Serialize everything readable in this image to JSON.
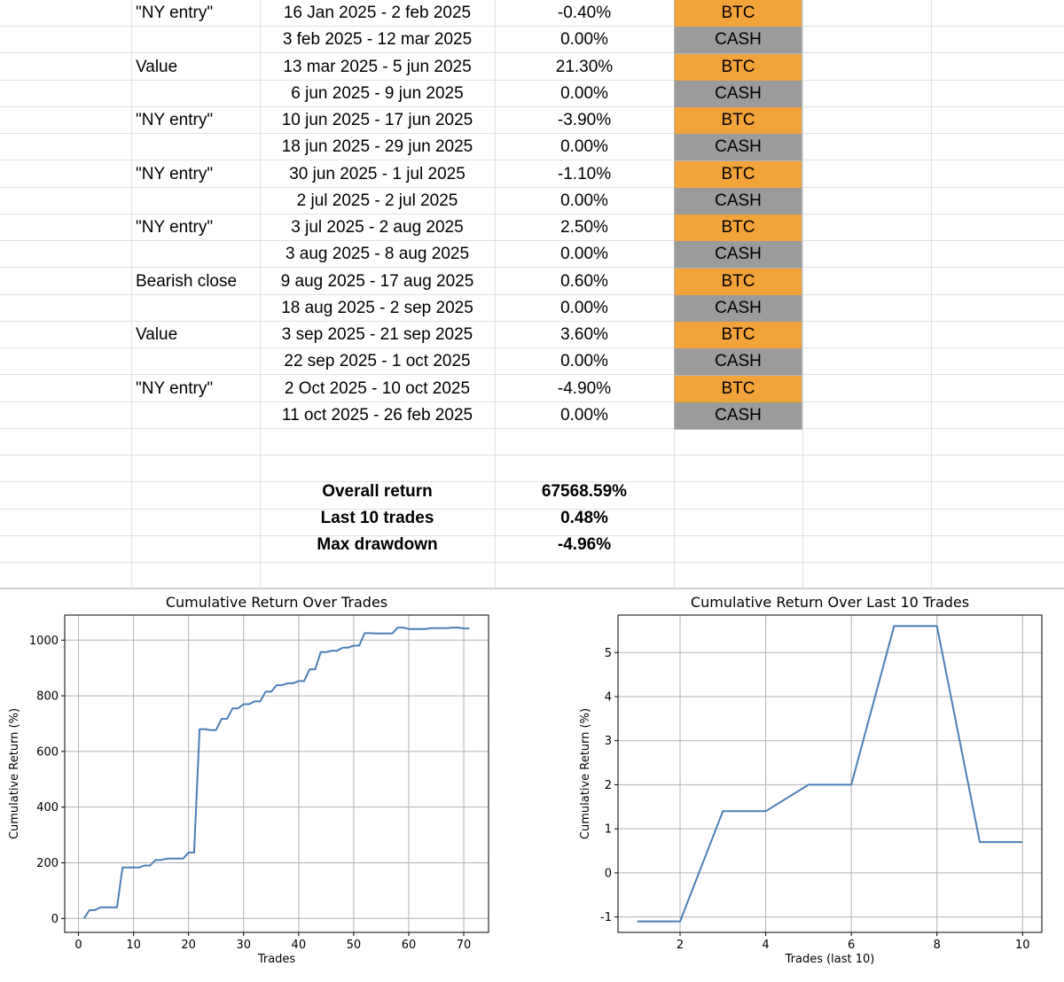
{
  "table": {
    "rows": [
      {
        "strategy": "\"NY entry\"",
        "period": "16 Jan 2025 - 2 feb 2025",
        "ret": "-0.40%",
        "asset": "BTC"
      },
      {
        "strategy": "",
        "period": "3 feb 2025 - 12 mar 2025",
        "ret": "0.00%",
        "asset": "CASH"
      },
      {
        "strategy": "Value",
        "period": "13 mar 2025 - 5 jun 2025",
        "ret": "21.30%",
        "asset": "BTC"
      },
      {
        "strategy": "",
        "period": "6 jun 2025 - 9 jun 2025",
        "ret": "0.00%",
        "asset": "CASH"
      },
      {
        "strategy": "\"NY entry\"",
        "period": "10 jun 2025 - 17 jun 2025",
        "ret": "-3.90%",
        "asset": "BTC"
      },
      {
        "strategy": "",
        "period": "18 jun 2025 - 29 jun 2025",
        "ret": "0.00%",
        "asset": "CASH"
      },
      {
        "strategy": "\"NY entry\"",
        "period": "30 jun 2025 - 1 jul 2025",
        "ret": "-1.10%",
        "asset": "BTC"
      },
      {
        "strategy": "",
        "period": "2 jul 2025 - 2 jul 2025",
        "ret": "0.00%",
        "asset": "CASH"
      },
      {
        "strategy": "\"NY entry\"",
        "period": "3 jul 2025 - 2 aug 2025",
        "ret": "2.50%",
        "asset": "BTC"
      },
      {
        "strategy": "",
        "period": "3 aug 2025 - 8 aug 2025",
        "ret": "0.00%",
        "asset": "CASH"
      },
      {
        "strategy": "Bearish close",
        "period": "9 aug 2025 - 17 aug 2025",
        "ret": "0.60%",
        "asset": "BTC"
      },
      {
        "strategy": "",
        "period": "18 aug 2025 - 2 sep 2025",
        "ret": "0.00%",
        "asset": "CASH"
      },
      {
        "strategy": "Value",
        "period": "3 sep 2025 - 21 sep 2025",
        "ret": "3.60%",
        "asset": "BTC"
      },
      {
        "strategy": "",
        "period": "22 sep 2025 - 1 oct 2025",
        "ret": "0.00%",
        "asset": "CASH"
      },
      {
        "strategy": "\"NY entry\"",
        "period": "2 Oct 2025 - 10 oct 2025",
        "ret": "-4.90%",
        "asset": "BTC"
      },
      {
        "strategy": "",
        "period": "11 oct 2025 - 26 feb 2025",
        "ret": "0.00%",
        "asset": "CASH"
      }
    ],
    "summary": [
      {
        "label": "Overall return",
        "value": "67568.59%"
      },
      {
        "label": "Last 10 trades",
        "value": "0.48%"
      },
      {
        "label": "Max drawdown",
        "value": "-4.96%"
      }
    ]
  },
  "colors": {
    "btc": "#f2a33a",
    "cash": "#9b9b9b",
    "line": "#4a7fb5"
  },
  "chart_data": [
    {
      "type": "line",
      "title": "Cumulative Return Over Trades",
      "xlabel": "Trades",
      "ylabel": "Cumulative Return (%)",
      "xlim": [
        -2.5,
        74.5
      ],
      "ylim": [
        -50,
        1090
      ],
      "xticks": [
        0,
        10,
        20,
        30,
        40,
        50,
        60,
        70
      ],
      "yticks": [
        0,
        200,
        400,
        600,
        800,
        1000
      ],
      "grid": true,
      "x": [
        1,
        2,
        3,
        4,
        5,
        6,
        7,
        8,
        9,
        10,
        11,
        12,
        13,
        14,
        15,
        16,
        17,
        18,
        19,
        20,
        21,
        22,
        23,
        24,
        25,
        26,
        27,
        28,
        29,
        30,
        31,
        32,
        33,
        34,
        35,
        36,
        37,
        38,
        39,
        40,
        41,
        42,
        43,
        44,
        45,
        46,
        47,
        48,
        49,
        50,
        51,
        52,
        53,
        54,
        55,
        56,
        57,
        58,
        59,
        60,
        61,
        62,
        63,
        64,
        65,
        66,
        67,
        68,
        69,
        70,
        71
      ],
      "y": [
        0,
        30,
        30,
        40,
        40,
        40,
        40,
        183,
        183,
        183,
        183,
        190,
        190,
        210,
        210,
        215,
        215,
        215,
        215,
        237,
        237,
        680,
        680,
        677,
        677,
        717,
        717,
        755,
        755,
        770,
        770,
        780,
        780,
        815,
        815,
        838,
        838,
        845,
        845,
        853,
        853,
        895,
        895,
        957,
        957,
        962,
        962,
        973,
        973,
        980,
        980,
        1025,
        1025,
        1024,
        1024,
        1024,
        1024,
        1045,
        1045,
        1040,
        1040,
        1040,
        1040,
        1043,
        1043,
        1043,
        1043,
        1045,
        1045,
        1042,
        1042
      ],
      "series_color": "#4a7fb5"
    },
    {
      "type": "line",
      "title": "Cumulative Return Over Last 10 Trades",
      "xlabel": "Trades (last 10)",
      "ylabel": "Cumulative Return (%)",
      "xlim": [
        0.55,
        10.45
      ],
      "ylim": [
        -1.35,
        5.85
      ],
      "xticks": [
        2,
        4,
        6,
        8,
        10
      ],
      "yticks": [
        -1,
        0,
        1,
        2,
        3,
        4,
        5
      ],
      "grid": true,
      "x": [
        1,
        2,
        3,
        4,
        5,
        6,
        7,
        8,
        9,
        10
      ],
      "y": [
        -1.1,
        -1.1,
        1.4,
        1.4,
        2.0,
        2.0,
        5.6,
        5.6,
        0.7,
        0.7
      ],
      "series_color": "#4a7fb5"
    }
  ]
}
